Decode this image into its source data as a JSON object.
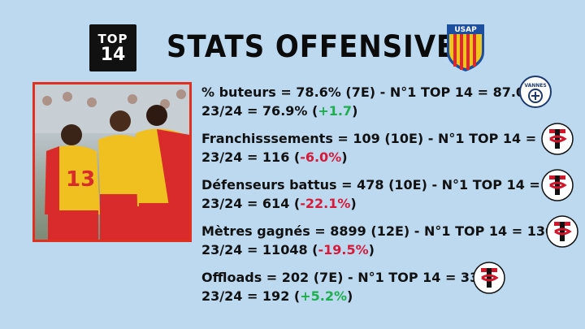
{
  "header": {
    "logo_text_line1": "TOP",
    "logo_text_line2": "14",
    "title": "STATS OFFENSIVES",
    "team_logo_text": "USAP"
  },
  "photo": {
    "alt": "rugby players celebrating"
  },
  "stats": [
    {
      "line1": "% buteurs = 78.6% (7E) - N°1 TOP 14 = 87.0%",
      "line2_prefix": "23/24 = 76.9% (",
      "delta": "+1.7",
      "delta_sign": "positive",
      "line2_suffix": ")",
      "leader_logo": "vannes-logo",
      "leader_logo_text": "VANNES"
    },
    {
      "line1": "Franchisssements = 109 (10E) - N°1 TOP 14 = 156",
      "line2_prefix": "23/24 = 116 (",
      "delta": "-6.0%",
      "delta_sign": "negative",
      "line2_suffix": ")",
      "leader_logo": "toulouse-logo"
    },
    {
      "line1": "Défenseurs battus = 478 (10E) - N°1 TOP 14 = 716",
      "line2_prefix": "23/24 = 614 (",
      "delta": "-22.1%",
      "delta_sign": "negative",
      "line2_suffix": ")",
      "leader_logo": "toulouse-logo"
    },
    {
      "line1": "Mètres gagnés = 8899 (12E) - N°1 TOP 14 = 13078",
      "line2_prefix": "23/24 = 11048 (",
      "delta": "-19.5%",
      "delta_sign": "negative",
      "line2_suffix": ")",
      "leader_logo": "toulouse-logo"
    },
    {
      "line1": "Offloads = 202 (7E) - N°1 TOP 14 = 338",
      "line2_prefix": "23/24 = 192 (",
      "delta": "+5.2%",
      "delta_sign": "positive",
      "line2_suffix": ")",
      "leader_logo": "toulouse-logo"
    }
  ],
  "colors": {
    "background": "#bcd9f0",
    "positive": "#1fae4d",
    "negative": "#d81a3a",
    "usap_red": "#d92b2b",
    "usap_yellow": "#f2c420",
    "toulouse_red": "#d0162b"
  }
}
